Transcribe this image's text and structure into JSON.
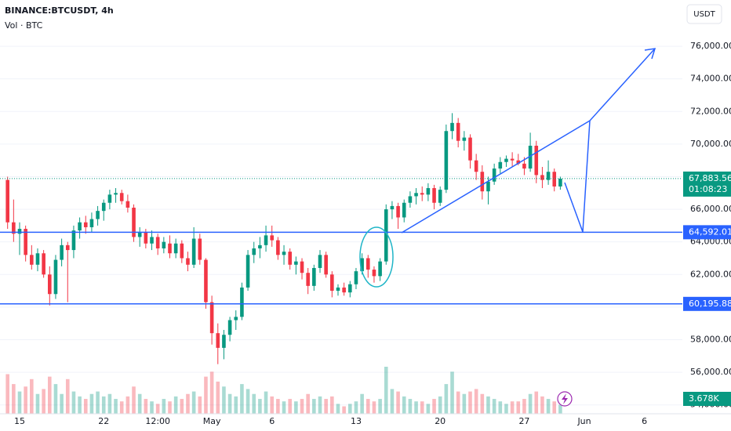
{
  "header": {
    "symbol": "BINANCE:BTCUSDT, 4h",
    "volume_label": "Vol · BTC",
    "currency": "USDT"
  },
  "chart_data": {
    "type": "candlestick",
    "categories": [
      null,
      null,
      "15",
      null,
      null,
      null,
      null,
      null,
      null,
      null,
      null,
      null,
      null,
      null,
      null,
      null,
      "22",
      null,
      null,
      null,
      null,
      null,
      null,
      null,
      null,
      "12:00",
      null,
      null,
      null,
      null,
      null,
      null,
      null,
      null,
      "May",
      null,
      null,
      null,
      null,
      null,
      null,
      null,
      null,
      null,
      "6",
      null,
      null,
      null,
      null,
      null,
      null,
      null,
      null,
      null,
      null,
      null,
      null,
      null,
      "13",
      null,
      null,
      null,
      null,
      null,
      null,
      null,
      null,
      null,
      null,
      null,
      null,
      null,
      "20",
      null,
      null,
      null,
      null,
      null,
      null,
      null,
      null,
      null,
      null,
      null,
      null,
      null,
      "27",
      null,
      null,
      null,
      null,
      null,
      null,
      null,
      null,
      null,
      "Jun",
      null,
      null,
      null,
      null,
      null,
      null,
      null,
      null,
      null,
      "6",
      null
    ],
    "open": [
      67800,
      65200,
      64500,
      64800,
      63200,
      62600,
      63300,
      62000,
      60800,
      62900,
      63800,
      63500,
      64700,
      65200,
      64900,
      65400,
      65900,
      66400,
      66900,
      67000,
      66500,
      66100,
      64300,
      64600,
      63900,
      64300,
      63600,
      63900,
      63300,
      63900,
      63000,
      62600,
      64200,
      62900,
      60300,
      58400,
      57500,
      58300,
      59200,
      59400,
      61200,
      63200,
      63600,
      63800,
      64400,
      64100,
      63200,
      63400,
      62600,
      62800,
      62100,
      61300,
      62400,
      63200,
      62000,
      61000,
      61200,
      60900,
      61400,
      62200,
      63000,
      62300,
      61900,
      62800,
      66000,
      66200,
      65500,
      66400,
      66800,
      67000,
      66900,
      67300,
      66400,
      67200,
      70800,
      71300,
      70200,
      70400,
      69000,
      68300,
      67100,
      67700,
      68500,
      68900,
      69100,
      69000,
      68800,
      68500,
      69900,
      68100,
      67800,
      68300,
      67400,
      null,
      null,
      null,
      null,
      null,
      null,
      null,
      null,
      null,
      null,
      null,
      null,
      null,
      null,
      null
    ],
    "high": [
      68000,
      66600,
      65200,
      65000,
      63800,
      63600,
      63500,
      62500,
      63200,
      64200,
      64000,
      65000,
      65500,
      65600,
      65800,
      66200,
      66600,
      67200,
      67300,
      67200,
      66900,
      66300,
      64900,
      64800,
      64700,
      64500,
      64300,
      64400,
      64200,
      64100,
      63400,
      64900,
      64500,
      63000,
      60700,
      59000,
      58600,
      59400,
      59800,
      61500,
      63500,
      64000,
      64300,
      65000,
      65000,
      64300,
      63800,
      63600,
      63100,
      63000,
      62400,
      62600,
      63500,
      63400,
      62200,
      61400,
      61500,
      61600,
      62400,
      63300,
      63200,
      62500,
      63000,
      66300,
      66500,
      66400,
      66600,
      67100,
      67300,
      67400,
      67600,
      67500,
      67400,
      71200,
      71900,
      71600,
      70800,
      70600,
      69400,
      68700,
      68000,
      68800,
      69200,
      69300,
      69500,
      69400,
      69200,
      70700,
      70200,
      68600,
      69000,
      68500,
      68000,
      null,
      null,
      null,
      null,
      null,
      null,
      null,
      null,
      null,
      null,
      null,
      null,
      null,
      null,
      null
    ],
    "low": [
      64800,
      64000,
      63200,
      62800,
      62300,
      62200,
      61800,
      60100,
      60500,
      62500,
      60300,
      63000,
      64200,
      64500,
      64600,
      65000,
      65300,
      66000,
      66400,
      66300,
      65800,
      64000,
      63700,
      63600,
      63500,
      63200,
      63300,
      63000,
      63000,
      62700,
      62200,
      62400,
      62600,
      59900,
      57700,
      56500,
      56800,
      57900,
      58600,
      59200,
      61000,
      62700,
      63000,
      63400,
      63700,
      62900,
      62600,
      62300,
      62000,
      61700,
      60800,
      61000,
      62100,
      61800,
      60600,
      60700,
      60700,
      60600,
      61100,
      62000,
      61800,
      61500,
      61600,
      62600,
      65400,
      64800,
      65200,
      66100,
      66300,
      66500,
      66500,
      66000,
      66200,
      67000,
      70300,
      69800,
      69600,
      68500,
      67800,
      66600,
      66300,
      67500,
      68200,
      68600,
      68600,
      68700,
      68100,
      68300,
      67600,
      67300,
      67500,
      67100,
      67200,
      null,
      null,
      null,
      null,
      null,
      null,
      null,
      null,
      null,
      null,
      null,
      null,
      null,
      null,
      null
    ],
    "close": [
      65200,
      64500,
      64800,
      63200,
      62600,
      63300,
      62000,
      60800,
      62900,
      63800,
      63500,
      64700,
      65200,
      64900,
      65400,
      65900,
      66400,
      66900,
      67000,
      66500,
      66100,
      64300,
      64600,
      63900,
      64300,
      63600,
      64000,
      63300,
      63900,
      63000,
      62600,
      64200,
      62900,
      60300,
      58400,
      57500,
      58300,
      59200,
      59400,
      61200,
      63200,
      63600,
      63800,
      64400,
      64100,
      63200,
      63400,
      62600,
      62800,
      62100,
      61300,
      62400,
      63200,
      62000,
      61000,
      61200,
      60900,
      61400,
      62200,
      63000,
      62300,
      61900,
      62800,
      66000,
      66200,
      65500,
      66400,
      66800,
      67000,
      66900,
      67300,
      66400,
      67200,
      70800,
      71300,
      70200,
      70400,
      69000,
      68300,
      67100,
      67700,
      68500,
      68900,
      69100,
      69000,
      68800,
      68500,
      69900,
      68100,
      67800,
      68300,
      67400,
      67883.56,
      null,
      null,
      null,
      null,
      null,
      null,
      null,
      null,
      null,
      null,
      null,
      null,
      null,
      null,
      null
    ],
    "volume": [
      16000,
      12000,
      9000,
      11000,
      14000,
      8000,
      10000,
      15000,
      12000,
      8000,
      14000,
      9000,
      7000,
      6000,
      8000,
      9000,
      7000,
      8000,
      6000,
      5000,
      7000,
      11000,
      8000,
      6000,
      5000,
      4000,
      6000,
      5000,
      7000,
      6000,
      8000,
      9000,
      7000,
      15000,
      17000,
      13000,
      11000,
      8000,
      7000,
      12000,
      10000,
      8000,
      6000,
      9000,
      7000,
      6000,
      5000,
      6000,
      5000,
      6000,
      8000,
      6000,
      7000,
      6000,
      7000,
      4000,
      3000,
      4000,
      5000,
      8000,
      6000,
      5000,
      6000,
      19000,
      10000,
      9000,
      7000,
      6000,
      5000,
      5000,
      4000,
      6000,
      7000,
      12000,
      17000,
      9000,
      8000,
      9000,
      10000,
      8000,
      7000,
      6000,
      5000,
      4000,
      5000,
      5000,
      6000,
      8000,
      9000,
      7000,
      6000,
      5000,
      3678,
      null,
      null,
      null,
      null,
      null,
      null,
      null,
      null,
      null,
      null,
      null,
      null,
      null,
      null,
      null
    ],
    "last_volume_label": "3.678K",
    "up_color": "#089981",
    "down_color": "#f23645",
    "ylim": [
      53360,
      78840
    ],
    "yticks": [
      {
        "value": 54000,
        "label": "54,000.00"
      },
      {
        "value": 56000,
        "label": "56,000.00"
      },
      {
        "value": 58000,
        "label": "58,000.00"
      },
      {
        "value": 60000,
        "label": "60,000.00"
      },
      {
        "value": 62000,
        "label": "62,000.00"
      },
      {
        "value": 64000,
        "label": "64,000.00"
      },
      {
        "value": 66000,
        "label": "66,000.00"
      },
      {
        "value": 68000,
        "label": "68,000.00"
      },
      {
        "value": 70000,
        "label": "70,000.00"
      },
      {
        "value": 72000,
        "label": "72,000.00"
      },
      {
        "value": 74000,
        "label": "74,000.00"
      },
      {
        "value": 76000,
        "label": "76,000.00"
      }
    ],
    "grid": true,
    "levels": [
      {
        "value": 64592.01,
        "label": "64,592.01",
        "color": "#2962ff"
      },
      {
        "value": 60195.88,
        "label": "60,195.88",
        "color": "#2962ff"
      }
    ],
    "last_price": {
      "value": 67883.56,
      "label": "67,883.56",
      "countdown": "01:08:23",
      "color": "#089981"
    }
  }
}
